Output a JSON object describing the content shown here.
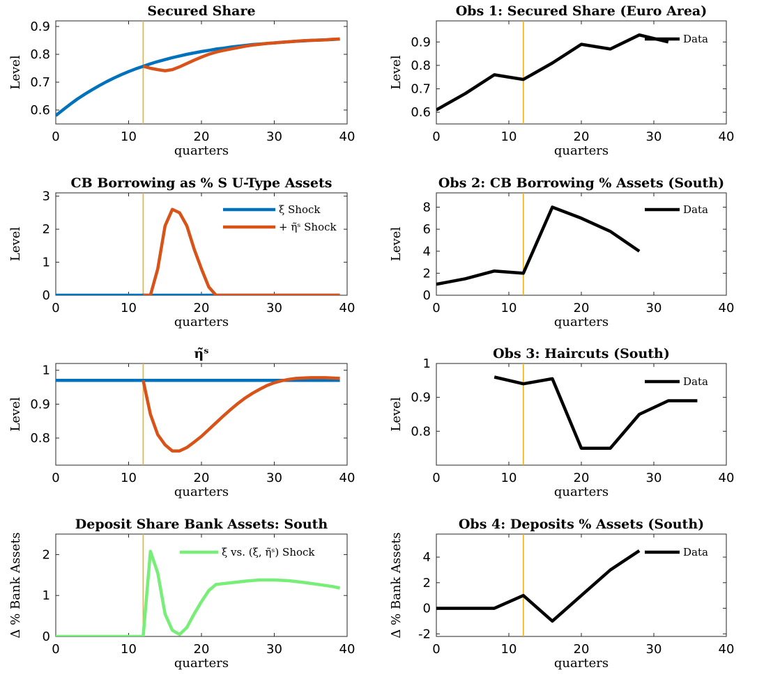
{
  "chart_data": [
    {
      "id": "p1",
      "type": "line",
      "title": "Secured Share",
      "xlabel": "quarters",
      "ylabel": "Level",
      "xlim": [
        0,
        40
      ],
      "ylim": [
        0.55,
        0.92
      ],
      "xticks": [
        0,
        10,
        20,
        30,
        40
      ],
      "yticks": [
        0.6,
        0.7,
        0.8,
        0.9
      ],
      "ytick_labels": [
        "0.6",
        "0.7",
        "0.8",
        "0.9"
      ],
      "vline_x": 12,
      "vline_color": "#EDB120",
      "legend": [],
      "series": [
        {
          "color": "#0072BD",
          "x": [
            0,
            1,
            2,
            3,
            4,
            5,
            6,
            7,
            8,
            9,
            10,
            11,
            12,
            13,
            14,
            15,
            16,
            17,
            18,
            19,
            20,
            21,
            22,
            23,
            24,
            25,
            26,
            27,
            28,
            29,
            30,
            31,
            32,
            33,
            34,
            35,
            36,
            37,
            38,
            39
          ],
          "y": [
            0.58,
            0.601,
            0.621,
            0.64,
            0.657,
            0.673,
            0.688,
            0.702,
            0.715,
            0.727,
            0.738,
            0.748,
            0.757,
            0.766,
            0.774,
            0.781,
            0.788,
            0.794,
            0.8,
            0.805,
            0.81,
            0.814,
            0.819,
            0.822,
            0.826,
            0.829,
            0.832,
            0.835,
            0.837,
            0.839,
            0.841,
            0.843,
            0.845,
            0.847,
            0.848,
            0.85,
            0.851,
            0.852,
            0.853,
            0.855
          ]
        },
        {
          "color": "#D95319",
          "x": [
            12,
            13,
            14,
            15,
            16,
            17,
            18,
            19,
            20,
            21,
            22,
            23,
            24,
            25,
            26,
            27,
            28,
            29,
            30,
            31,
            32,
            33,
            34,
            35,
            36,
            37,
            38,
            39
          ],
          "y": [
            0.757,
            0.75,
            0.745,
            0.741,
            0.745,
            0.755,
            0.767,
            0.779,
            0.79,
            0.8,
            0.808,
            0.814,
            0.819,
            0.824,
            0.829,
            0.833,
            0.836,
            0.839,
            0.841,
            0.843,
            0.845,
            0.847,
            0.849,
            0.85,
            0.851,
            0.852,
            0.854,
            0.855
          ]
        }
      ]
    },
    {
      "id": "p2",
      "type": "line",
      "title": "Obs 1: Secured Share (Euro Area)",
      "xlabel": "quarters",
      "ylabel": "Level",
      "xlim": [
        0,
        40
      ],
      "ylim": [
        0.55,
        0.99
      ],
      "xticks": [
        0,
        10,
        20,
        30,
        40
      ],
      "yticks": [
        0.6,
        0.7,
        0.8,
        0.9
      ],
      "ytick_labels": [
        "0.6",
        "0.7",
        "0.8",
        "0.9"
      ],
      "vline_x": 12,
      "vline_color": "#EDB120",
      "legend": [
        {
          "label": "Data",
          "color": "#000000"
        }
      ],
      "series": [
        {
          "color": "#000000",
          "x": [
            0,
            4,
            8,
            12,
            16,
            20,
            24,
            28,
            32
          ],
          "y": [
            0.61,
            0.68,
            0.76,
            0.74,
            0.81,
            0.89,
            0.87,
            0.93,
            0.9
          ]
        }
      ]
    },
    {
      "id": "p3",
      "type": "line",
      "title": "CB Borrowing as % S U-Type Assets",
      "xlabel": "quarters",
      "ylabel": "Level",
      "xlim": [
        0,
        40
      ],
      "ylim": [
        0,
        3.1
      ],
      "xticks": [
        0,
        10,
        20,
        30,
        40
      ],
      "yticks": [
        0,
        1,
        2,
        3
      ],
      "ytick_labels": [
        "0",
        "1",
        "2",
        "3"
      ],
      "vline_x": 12,
      "vline_color": "#EDB120",
      "legend": [
        {
          "label": "ξ Shock",
          "color": "#0072BD"
        },
        {
          "label": "+ η̃ˢ Shock",
          "color": "#D95319"
        }
      ],
      "series": [
        {
          "color": "#0072BD",
          "x": [
            0,
            39
          ],
          "y": [
            0,
            0
          ]
        },
        {
          "color": "#D95319",
          "x": [
            12,
            13,
            14,
            15,
            16,
            17,
            18,
            19,
            20,
            21,
            22,
            23,
            24,
            25,
            26,
            27,
            28,
            29,
            30,
            31,
            32,
            33,
            34,
            35,
            36,
            37,
            38,
            39
          ],
          "y": [
            0,
            0,
            0.8,
            2.1,
            2.6,
            2.5,
            2.1,
            1.4,
            0.8,
            0.25,
            0,
            0,
            0,
            0,
            0,
            0,
            0,
            0,
            0,
            0,
            0,
            0,
            0,
            0,
            0,
            0,
            0,
            0
          ]
        }
      ]
    },
    {
      "id": "p4",
      "type": "line",
      "title": "Obs 2: CB Borrowing % Assets (South)",
      "xlabel": "quarters",
      "ylabel": "Level",
      "xlim": [
        0,
        40
      ],
      "ylim": [
        0,
        9.3
      ],
      "xticks": [
        0,
        10,
        20,
        30,
        40
      ],
      "yticks": [
        0,
        2,
        4,
        6,
        8
      ],
      "ytick_labels": [
        "0",
        "2",
        "4",
        "6",
        "8"
      ],
      "vline_x": 12,
      "vline_color": "#EDB120",
      "legend": [
        {
          "label": "Data",
          "color": "#000000"
        }
      ],
      "series": [
        {
          "color": "#000000",
          "x": [
            0,
            4,
            8,
            12,
            16,
            20,
            24,
            28
          ],
          "y": [
            1.0,
            1.5,
            2.2,
            2.0,
            8.0,
            7.0,
            5.8,
            4.0
          ]
        }
      ]
    },
    {
      "id": "p5",
      "type": "line",
      "title": "η̃ˢ",
      "xlabel": "quarters",
      "ylabel": "Level",
      "xlim": [
        0,
        40
      ],
      "ylim": [
        0.72,
        1.02
      ],
      "xticks": [
        0,
        10,
        20,
        30,
        40
      ],
      "yticks": [
        0.8,
        0.9,
        1.0
      ],
      "ytick_labels": [
        "0.8",
        "0.9",
        "1"
      ],
      "vline_x": 12,
      "vline_color": "#EDB120",
      "legend": [],
      "series": [
        {
          "color": "#0072BD",
          "x": [
            0,
            39
          ],
          "y": [
            0.97,
            0.97
          ]
        },
        {
          "color": "#D95319",
          "x": [
            12,
            13,
            14,
            15,
            16,
            17,
            18,
            19,
            20,
            21,
            22,
            23,
            24,
            25,
            26,
            27,
            28,
            29,
            30,
            31,
            32,
            33,
            34,
            35,
            36,
            37,
            38,
            39
          ],
          "y": [
            0.97,
            0.87,
            0.81,
            0.78,
            0.762,
            0.762,
            0.772,
            0.788,
            0.805,
            0.825,
            0.845,
            0.865,
            0.884,
            0.902,
            0.918,
            0.932,
            0.944,
            0.955,
            0.963,
            0.969,
            0.973,
            0.976,
            0.977,
            0.978,
            0.978,
            0.978,
            0.977,
            0.976
          ]
        }
      ]
    },
    {
      "id": "p6",
      "type": "line",
      "title": "Obs 3: Haircuts (South)",
      "xlabel": "quarters",
      "ylabel": "Level",
      "xlim": [
        0,
        40
      ],
      "ylim": [
        0.7,
        1.0
      ],
      "xticks": [
        0,
        10,
        20,
        30,
        40
      ],
      "yticks": [
        0.8,
        0.9,
        1.0
      ],
      "ytick_labels": [
        "0.8",
        "0.9",
        "1"
      ],
      "vline_x": 12,
      "vline_color": "#EDB120",
      "legend": [
        {
          "label": "Data",
          "color": "#000000"
        }
      ],
      "series": [
        {
          "color": "#000000",
          "x": [
            8,
            12,
            16,
            20,
            24,
            28,
            32,
            36
          ],
          "y": [
            0.96,
            0.94,
            0.955,
            0.75,
            0.75,
            0.85,
            0.89,
            0.89
          ]
        }
      ]
    },
    {
      "id": "p7",
      "type": "line",
      "title": "Deposit Share Bank Assets: South",
      "xlabel": "quarters",
      "ylabel": "Δ % Bank Assets",
      "xlim": [
        0,
        40
      ],
      "ylim": [
        0,
        2.5
      ],
      "xticks": [
        0,
        10,
        20,
        30,
        40
      ],
      "yticks": [
        0,
        1,
        2
      ],
      "ytick_labels": [
        "0",
        "1",
        "2"
      ],
      "vline_x": 12,
      "vline_color": "#EDB120",
      "legend": [
        {
          "label": "ξ vs. (ξ, η̃ˢ) Shock",
          "color": "#77EE77"
        }
      ],
      "series": [
        {
          "color": "#77EE77",
          "x": [
            0,
            12,
            13,
            14,
            15,
            16,
            17,
            18,
            19,
            20,
            21,
            22,
            24,
            26,
            28,
            30,
            32,
            34,
            36,
            38,
            39
          ],
          "y": [
            0,
            0,
            2.08,
            1.55,
            0.55,
            0.15,
            0.05,
            0.22,
            0.55,
            0.85,
            1.12,
            1.27,
            1.31,
            1.35,
            1.38,
            1.38,
            1.36,
            1.32,
            1.27,
            1.22,
            1.18
          ]
        }
      ]
    },
    {
      "id": "p8",
      "type": "line",
      "title": "Obs 4: Deposits % Assets (South)",
      "xlabel": "quarters",
      "ylabel": "Δ % Bank Assets",
      "xlim": [
        0,
        40
      ],
      "ylim": [
        -2.2,
        5.8
      ],
      "xticks": [
        0,
        10,
        20,
        30,
        40
      ],
      "yticks": [
        -2,
        0,
        2,
        4
      ],
      "ytick_labels": [
        "-2",
        "0",
        "2",
        "4"
      ],
      "vline_x": 12,
      "vline_color": "#EDB120",
      "legend": [
        {
          "label": "Data",
          "color": "#000000"
        }
      ],
      "series": [
        {
          "color": "#000000",
          "x": [
            0,
            4,
            8,
            12,
            16,
            20,
            24,
            28
          ],
          "y": [
            0,
            0,
            0,
            1.0,
            -1.0,
            1.0,
            3.0,
            4.5
          ]
        }
      ]
    }
  ]
}
